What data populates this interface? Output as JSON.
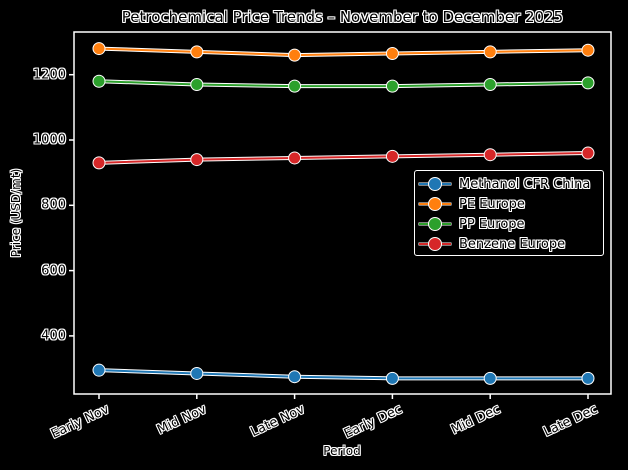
{
  "chart_data": {
    "type": "line",
    "title": "Petrochemical Price Trends – November to December 2025",
    "xlabel": "Period",
    "ylabel": "Price (USD/mt)",
    "categories": [
      "Early Nov",
      "Mid Nov",
      "Late Nov",
      "Early Dec",
      "Mid Dec",
      "Late Dec"
    ],
    "yticks": [
      400,
      600,
      800,
      1000,
      1200
    ],
    "ylim": [
      240,
      1320
    ],
    "grid": false,
    "legend_position": "center right",
    "series": [
      {
        "name": "Methanol CFR China",
        "color": "#1f77b4",
        "values": [
          295,
          285,
          275,
          270,
          270,
          270
        ]
      },
      {
        "name": "PE Europe",
        "color": "#ff7f0e",
        "values": [
          1280,
          1270,
          1260,
          1265,
          1270,
          1275
        ]
      },
      {
        "name": "PP Europe",
        "color": "#2ca02c",
        "values": [
          1180,
          1170,
          1165,
          1165,
          1170,
          1175
        ]
      },
      {
        "name": "Benzene Europe",
        "color": "#d62728",
        "values": [
          930,
          940,
          945,
          950,
          955,
          960
        ]
      }
    ]
  },
  "ytick_labels": [
    "1200",
    "1000",
    "800",
    "600",
    "400"
  ],
  "legend": {
    "items": [
      {
        "label": "Methanol CFR China",
        "color": "#1f77b4"
      },
      {
        "label": "PE Europe",
        "color": "#ff7f0e"
      },
      {
        "label": "PP Europe",
        "color": "#2ca02c"
      },
      {
        "label": "Benzene Europe",
        "color": "#d62728"
      }
    ]
  }
}
